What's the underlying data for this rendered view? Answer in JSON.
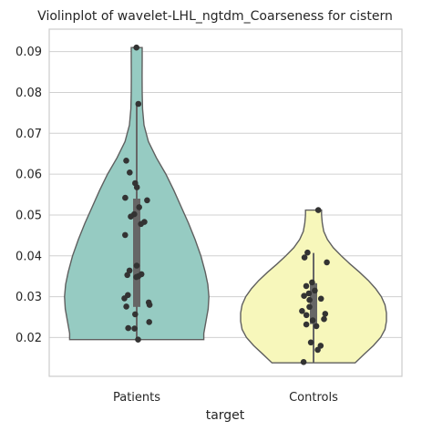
{
  "chart_data": {
    "type": "violin",
    "title": "Violinplot of wavelet-LHL_ngtdm_Coarseness for cistern",
    "xlabel": "target",
    "ylabel": "",
    "categories": [
      "Patients",
      "Controls"
    ],
    "ylim": [
      0.0105,
      0.0955
    ],
    "yticks": [
      0.02,
      0.03,
      0.04,
      0.05,
      0.06,
      0.07,
      0.08,
      0.09
    ],
    "ytick_labels": [
      "0.02",
      "0.03",
      "0.04",
      "0.05",
      "0.06",
      "0.07",
      "0.08",
      "0.09"
    ],
    "grid": "horizontal",
    "colors": {
      "Patients": "#96cbc2",
      "Controls": "#f7f7bb",
      "outline": "#5f5f5f",
      "points": "#333333",
      "box": "#666666",
      "grid": "#d0d0d0",
      "frame": "#cccccc"
    },
    "violins": [
      {
        "category": "Patients",
        "range": [
          0.0195,
          0.091
        ],
        "density": [
          [
            0.0195,
            0.92
          ],
          [
            0.021,
            0.92
          ],
          [
            0.024,
            0.95
          ],
          [
            0.027,
            0.98
          ],
          [
            0.03,
            0.99
          ],
          [
            0.033,
            0.975
          ],
          [
            0.036,
            0.94
          ],
          [
            0.04,
            0.88
          ],
          [
            0.044,
            0.8
          ],
          [
            0.048,
            0.71
          ],
          [
            0.052,
            0.61
          ],
          [
            0.056,
            0.51
          ],
          [
            0.06,
            0.4
          ],
          [
            0.064,
            0.27
          ],
          [
            0.068,
            0.16
          ],
          [
            0.072,
            0.1
          ],
          [
            0.076,
            0.08
          ],
          [
            0.08,
            0.075
          ],
          [
            0.084,
            0.074
          ],
          [
            0.088,
            0.075
          ],
          [
            0.091,
            0.075
          ]
        ],
        "box": {
          "q1": 0.0275,
          "median": 0.0355,
          "q3": 0.054,
          "whisker_low": 0.0195,
          "whisker_high": 0.0772
        },
        "points": [
          0.091,
          0.0772,
          0.0633,
          0.0604,
          0.0578,
          0.0568,
          0.0542,
          0.0536,
          0.0519,
          0.0502,
          0.0496,
          0.0483,
          0.0478,
          0.0451,
          0.0376,
          0.0364,
          0.0355,
          0.0353,
          0.035,
          0.0348,
          0.0304,
          0.0296,
          0.0286,
          0.028,
          0.0276,
          0.0257,
          0.0238,
          0.0223,
          0.0222,
          0.0195
        ]
      },
      {
        "category": "Controls",
        "range": [
          0.0138,
          0.0512
        ],
        "density": [
          [
            0.0138,
            0.57
          ],
          [
            0.016,
            0.7
          ],
          [
            0.018,
            0.82
          ],
          [
            0.02,
            0.92
          ],
          [
            0.022,
            0.98
          ],
          [
            0.024,
            1.0
          ],
          [
            0.026,
            1.0
          ],
          [
            0.028,
            0.98
          ],
          [
            0.03,
            0.93
          ],
          [
            0.032,
            0.85
          ],
          [
            0.034,
            0.75
          ],
          [
            0.036,
            0.63
          ],
          [
            0.038,
            0.5
          ],
          [
            0.04,
            0.38
          ],
          [
            0.042,
            0.27
          ],
          [
            0.044,
            0.19
          ],
          [
            0.046,
            0.14
          ],
          [
            0.048,
            0.12
          ],
          [
            0.05,
            0.11
          ],
          [
            0.0512,
            0.11
          ]
        ],
        "box": {
          "q1": 0.0233,
          "median": 0.0275,
          "q3": 0.0333,
          "whisker_low": 0.0138,
          "whisker_high": 0.0407
        },
        "points": [
          0.0512,
          0.0408,
          0.0396,
          0.0384,
          0.0335,
          0.0326,
          0.0315,
          0.0308,
          0.0302,
          0.0295,
          0.0292,
          0.0275,
          0.0265,
          0.0258,
          0.0255,
          0.0245,
          0.0242,
          0.0232,
          0.0228,
          0.0188,
          0.018,
          0.017,
          0.014
        ]
      }
    ]
  }
}
